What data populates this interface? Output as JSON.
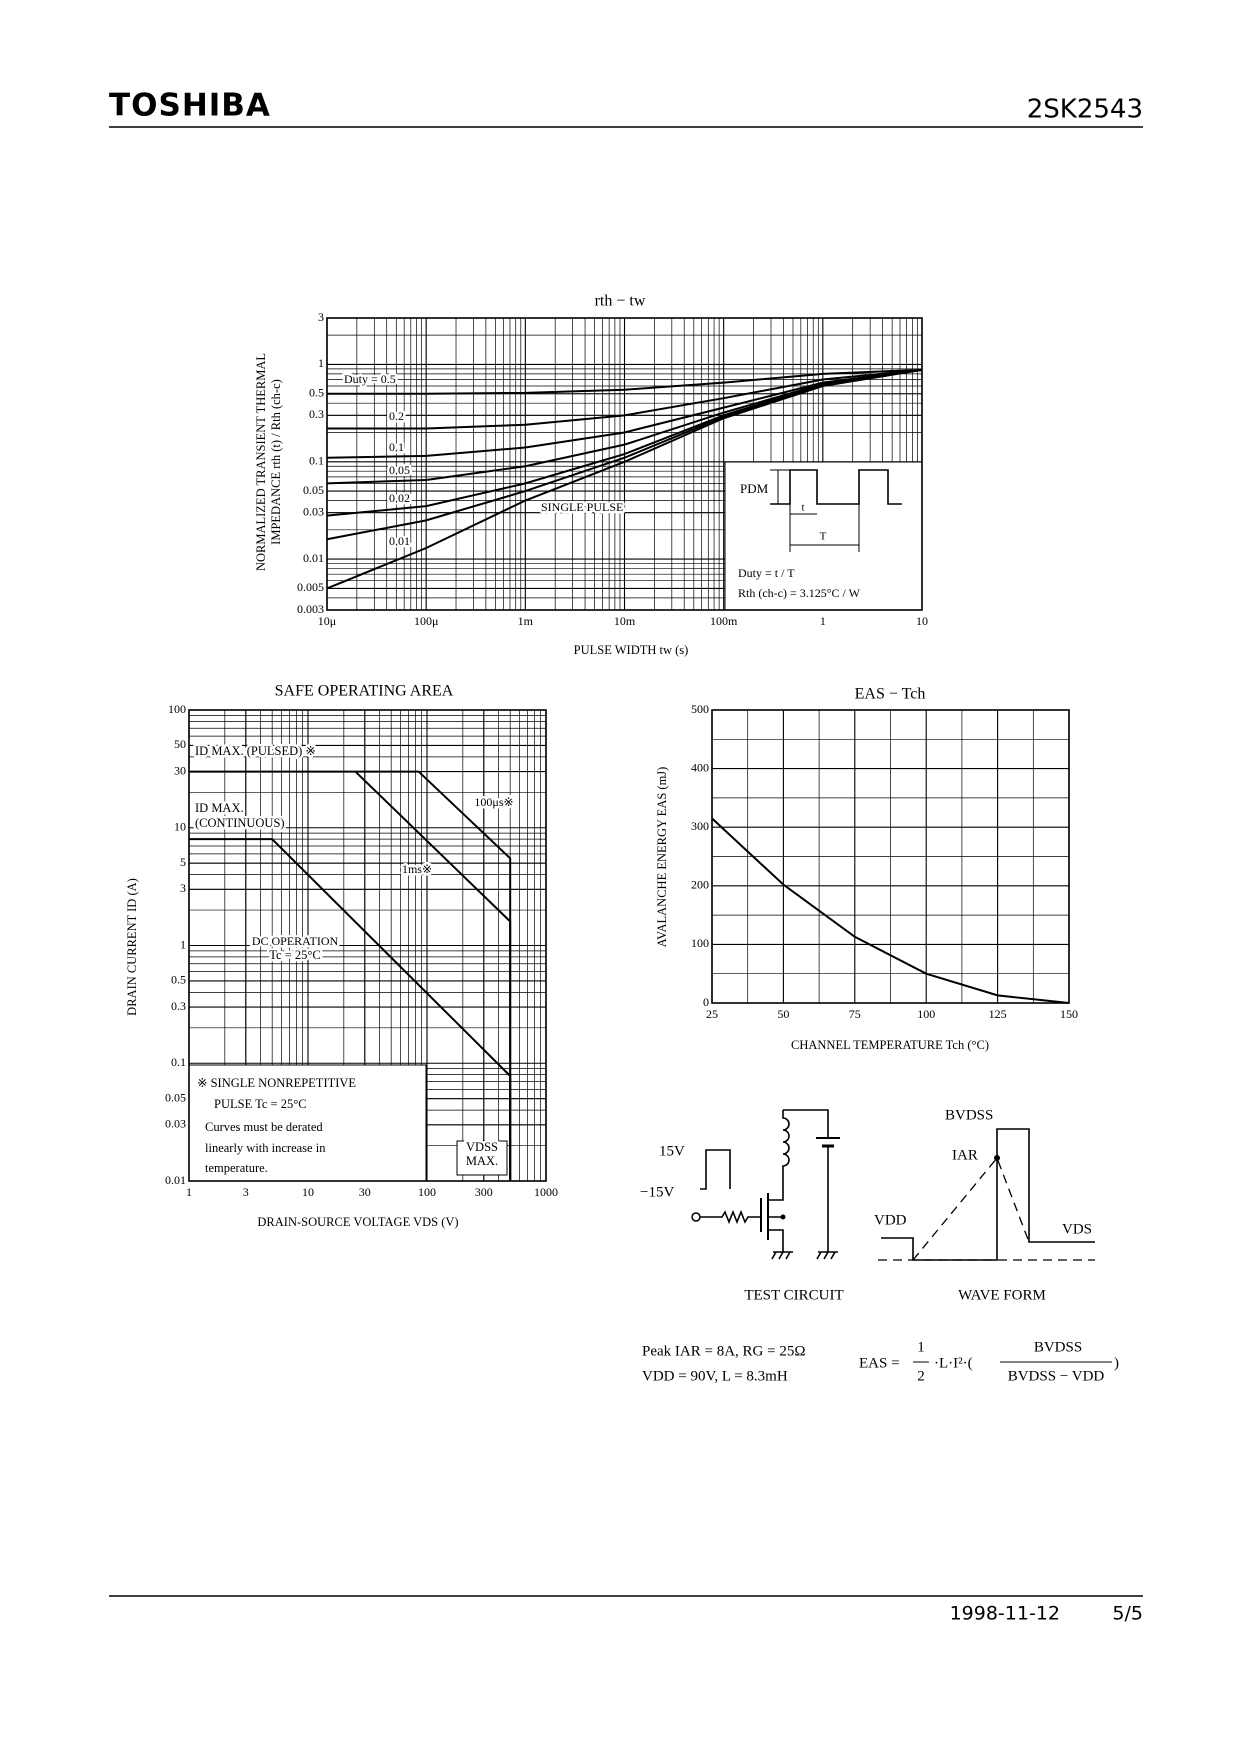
{
  "header": {
    "brand": "TOSHIBA",
    "part": "2SK2543"
  },
  "chart_data": [
    {
      "type": "line",
      "title": "rth − tw",
      "xlabel": "PULSE WIDTH   tw   (s)",
      "ylabel": [
        "NORMALIZED TRANSIENT THERMAL",
        "IMPEDANCE   rth (t) / Rth (ch-c)"
      ],
      "log_x": true,
      "log_y": true,
      "grid": true,
      "color": "#000000",
      "xlim": [
        1e-05,
        10
      ],
      "ylim": [
        0.003,
        3
      ],
      "xticks": [
        {
          "value": 1e-05,
          "label": "10μ"
        },
        {
          "value": 0.0001,
          "label": "100μ"
        },
        {
          "value": 0.001,
          "label": "1m"
        },
        {
          "value": 0.01,
          "label": "10m"
        },
        {
          "value": 0.1,
          "label": "100m"
        },
        1,
        10
      ],
      "yticks": [
        0.003,
        0.005,
        0.01,
        0.03,
        0.05,
        0.1,
        0.3,
        0.5,
        1,
        3
      ],
      "x": [
        1e-05,
        0.0001,
        0.001,
        0.01,
        0.1,
        1,
        10
      ],
      "series": [
        {
          "name": "Duty = 0.5",
          "values": [
            0.5,
            0.5,
            0.51,
            0.55,
            0.65,
            0.8,
            0.88
          ]
        },
        {
          "name": "0.2",
          "values": [
            0.22,
            0.22,
            0.24,
            0.3,
            0.45,
            0.7,
            0.88
          ]
        },
        {
          "name": "0.1",
          "values": [
            0.11,
            0.115,
            0.14,
            0.2,
            0.36,
            0.65,
            0.88
          ]
        },
        {
          "name": "0.05",
          "values": [
            0.06,
            0.065,
            0.09,
            0.15,
            0.32,
            0.63,
            0.88
          ]
        },
        {
          "name": "0.02",
          "values": [
            0.028,
            0.035,
            0.06,
            0.12,
            0.3,
            0.62,
            0.88
          ]
        },
        {
          "name": "0.01",
          "values": [
            0.016,
            0.025,
            0.05,
            0.11,
            0.29,
            0.62,
            0.88
          ]
        },
        {
          "name": "SINGLE PULSE",
          "values": [
            0.005,
            0.013,
            0.04,
            0.1,
            0.28,
            0.6,
            0.88
          ]
        }
      ],
      "inset": {
        "pdm": "PDM",
        "t": "t",
        "T": "T",
        "duty": "Duty = t / T",
        "rth": "Rth (ch-c) = 3.125°C / W"
      }
    },
    {
      "type": "line",
      "title": "SAFE OPERATING AREA",
      "xlabel": "DRAIN-SOURCE VOLTAGE   VDS   (V)",
      "ylabel": [
        "DRAIN CURRENT   ID   (A)"
      ],
      "log_x": true,
      "log_y": true,
      "grid": true,
      "color": "#000000",
      "xlim": [
        1,
        1000
      ],
      "ylim": [
        0.01,
        100
      ],
      "xticks": [
        1,
        3,
        10,
        30,
        100,
        300,
        1000
      ],
      "yticks": [
        0.01,
        0.03,
        0.05,
        0.1,
        0.3,
        0.5,
        1,
        3,
        5,
        10,
        30,
        50,
        100
      ],
      "series": [
        {
          "name": "100μs※",
          "x": [
            1,
            85,
            500,
            500
          ],
          "values": [
            30,
            30,
            5.5,
            0.01
          ]
        },
        {
          "name": "1ms※",
          "x": [
            25,
            500,
            500
          ],
          "values": [
            30,
            1.6,
            0.01
          ]
        },
        {
          "name": "DC OPERATION",
          "x": [
            1,
            5,
            500,
            500
          ],
          "values": [
            8,
            8,
            0.078,
            0.01
          ]
        }
      ],
      "annotations": [
        "ID MAX. (PULSED) ※",
        "ID MAX.",
        "(CONTINUOUS)",
        "※ SINGLE NONREPETITIVE",
        "PULSE Tc = 25°C",
        "Curves must be derated",
        "linearly with increase in",
        "temperature.",
        "VDSS",
        "MAX.",
        "Tc = 25°C"
      ]
    },
    {
      "type": "line",
      "title": "EAS − Tch",
      "xlabel": "CHANNEL TEMPERATURE   Tch   (°C)",
      "ylabel": [
        "AVALANCHE ENERGY   EAS   (mJ)"
      ],
      "log_x": false,
      "log_y": false,
      "grid": true,
      "color": "#000000",
      "xlim": [
        25,
        150
      ],
      "ylim": [
        0,
        500
      ],
      "xticks": [
        25,
        50,
        75,
        100,
        125,
        150
      ],
      "yticks": [
        0,
        100,
        200,
        300,
        400,
        500
      ],
      "x": [
        25,
        50,
        75,
        100,
        125,
        150
      ],
      "series": [
        {
          "name": null,
          "values": [
            315,
            202,
            113,
            50,
            13,
            0
          ]
        }
      ]
    }
  ],
  "test_circuit": {
    "high": "15V",
    "low": "−15V",
    "caption": "TEST CIRCUIT"
  },
  "wave_form": {
    "bvdss": "BVDSS",
    "iar": "IAR",
    "vdd": "VDD",
    "vds": "VDS",
    "caption": "WAVE FORM"
  },
  "conditions": [
    "Peak IAR = 8A, RG = 25Ω",
    "VDD = 90V, L = 8.3mH"
  ],
  "formula": {
    "lhs": "EAS =",
    "num": "1",
    "den": "2",
    "mid": "·L·I²·(",
    "frac_num": "BVDSS",
    "frac_den": "BVDSS − VDD",
    "close": ")"
  },
  "footer": {
    "date": "1998-11-12",
    "page": "5/5"
  }
}
